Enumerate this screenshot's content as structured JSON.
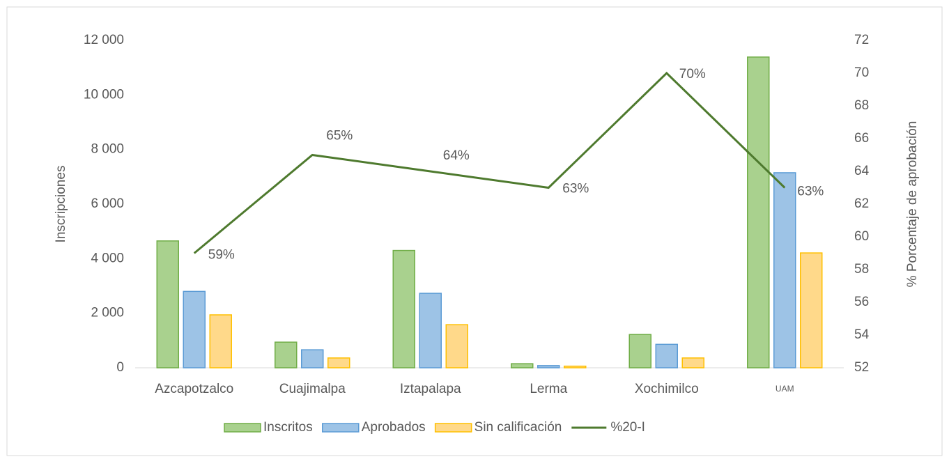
{
  "chart_data": {
    "type": "bar",
    "categories": [
      "Azcapotzalco",
      "Cuajimalpa",
      "Iztapalapa",
      "Lerma",
      "Xochimilco",
      "UAM"
    ],
    "series": [
      {
        "name": "Inscritos",
        "color": "#a9d18e",
        "values": [
          4650,
          940,
          4300,
          150,
          1220,
          11390
        ]
      },
      {
        "name": "Aprobados",
        "color": "#9dc3e6",
        "values": [
          2800,
          660,
          2730,
          80,
          860,
          7150
        ]
      },
      {
        "name": "Sin calificación",
        "color": "#ffd98a",
        "values": [
          1940,
          360,
          1580,
          60,
          360,
          4210
        ]
      },
      {
        "name": "%20-I",
        "color": "#4e7a2e",
        "type": "line",
        "axis": "y2",
        "values": [
          59,
          65,
          64,
          63,
          70,
          63
        ],
        "value_labels": [
          "59%",
          "65%",
          "64%",
          "63%",
          "70%",
          "63%"
        ]
      }
    ],
    "ylabel": "Inscripciones",
    "y2label": "% Porcentaje de aprobación",
    "ylim": [
      0,
      12000
    ],
    "yticks": [
      0,
      {
        "value": 2000,
        "label": "2 000"
      },
      {
        "value": 4000,
        "label": "4 000"
      },
      {
        "value": 6000,
        "label": "6 000"
      },
      {
        "value": 8000,
        "label": "8 000"
      },
      {
        "value": 10000,
        "label": "10 000"
      },
      {
        "value": 12000,
        "label": "12 000"
      }
    ],
    "y2lim": [
      52,
      72
    ],
    "y2ticks": [
      52,
      54,
      56,
      58,
      60,
      62,
      64,
      66,
      68,
      70,
      72
    ],
    "grid": false,
    "legend": "bottom"
  }
}
